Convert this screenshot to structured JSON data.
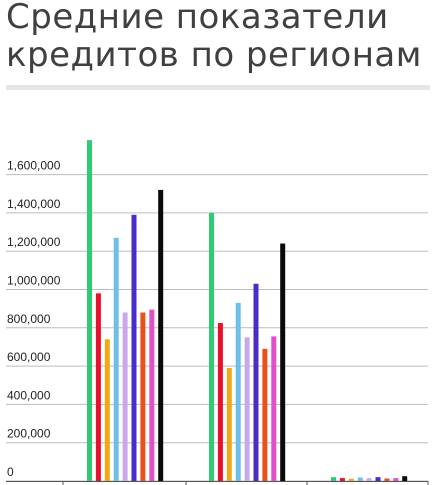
{
  "title": {
    "line1": "Средние показатели",
    "line2": "кредитов по регионам"
  },
  "chart_data": {
    "type": "bar",
    "title": "Средние показатели кредитов по регионам",
    "xlabel": "",
    "ylabel": "",
    "ylim": [
      0,
      1700000
    ],
    "yticks": [
      "0",
      "200,000",
      "400,000",
      "600,000",
      "800,000",
      "1,000,000",
      "1,200,000",
      "1,400,000",
      "1,600,000"
    ],
    "ytick_values": [
      0,
      200000,
      400000,
      600000,
      800000,
      1000000,
      1200000,
      1400000,
      1600000
    ],
    "grid": true,
    "legend": "none",
    "categories": [
      "",
      "",
      ""
    ],
    "series": [
      {
        "color": "#2ecc71",
        "values": [
          1780000,
          1400000,
          20000
        ]
      },
      {
        "color": "#e8112d",
        "values": [
          980000,
          825000,
          15000
        ]
      },
      {
        "color": "#f0a818",
        "values": [
          740000,
          590000,
          12000
        ]
      },
      {
        "color": "#6cbfe8",
        "values": [
          1270000,
          930000,
          18000
        ]
      },
      {
        "color": "#c8a8e8",
        "values": [
          880000,
          750000,
          15000
        ]
      },
      {
        "color": "#4a2cc8",
        "values": [
          1390000,
          1030000,
          20000
        ]
      },
      {
        "color": "#e8501c",
        "values": [
          880000,
          690000,
          13000
        ]
      },
      {
        "color": "#e050c8",
        "values": [
          895000,
          755000,
          15000
        ]
      },
      {
        "color": "#0a0a0a",
        "values": [
          1520000,
          1240000,
          25000
        ]
      }
    ]
  }
}
